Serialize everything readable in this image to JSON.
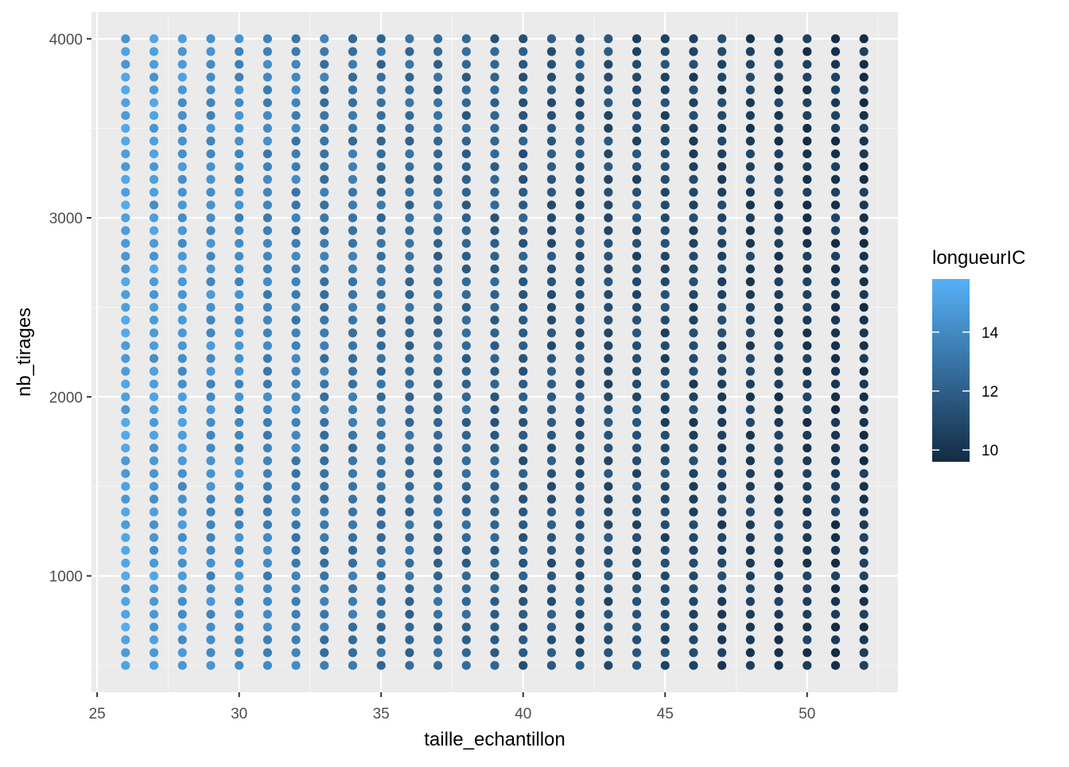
{
  "chart_data": {
    "type": "scatter",
    "title": "",
    "xlabel": "taille_echantillon",
    "ylabel": "nb_tirages",
    "xlim": [
      24.8,
      53.2
    ],
    "ylim": [
      350,
      4150
    ],
    "x_ticks": [
      25,
      30,
      35,
      40,
      45,
      50
    ],
    "x_tick_labels": [
      "25",
      "30",
      "35",
      "40",
      "45",
      "50"
    ],
    "y_ticks": [
      1000,
      2000,
      3000,
      4000
    ],
    "y_tick_labels": [
      "1000",
      "2000",
      "3000",
      "4000"
    ],
    "grid": true,
    "x_values": {
      "start": 26,
      "end": 52,
      "step": 1
    },
    "y_values": {
      "start": 500,
      "end": 4000,
      "step": 71.43
    },
    "color_variable": "longueurIC",
    "color_scale": {
      "low": "#132B43",
      "high": "#56B1F7",
      "min": 9.6,
      "max": 15.8
    },
    "mean_longueurIC_by_x": [
      15.0,
      14.8,
      14.5,
      14.2,
      14.0,
      13.7,
      13.5,
      13.2,
      13.0,
      12.8,
      12.6,
      12.4,
      12.2,
      12.0,
      11.8,
      11.6,
      11.4,
      11.3,
      11.1,
      11.0,
      10.8,
      10.7,
      10.5,
      10.4,
      10.3,
      10.2,
      10.1
    ],
    "legend": {
      "title": "longueurIC",
      "placement": "right",
      "ticks": [
        10,
        12,
        14
      ],
      "tick_labels": [
        "10",
        "12",
        "14"
      ]
    }
  },
  "colors": {
    "panel_background": "#EBEBEB",
    "grid_major": "#FFFFFF",
    "grid_minor": "#F5F5F5",
    "axis_tick": "#333333"
  }
}
